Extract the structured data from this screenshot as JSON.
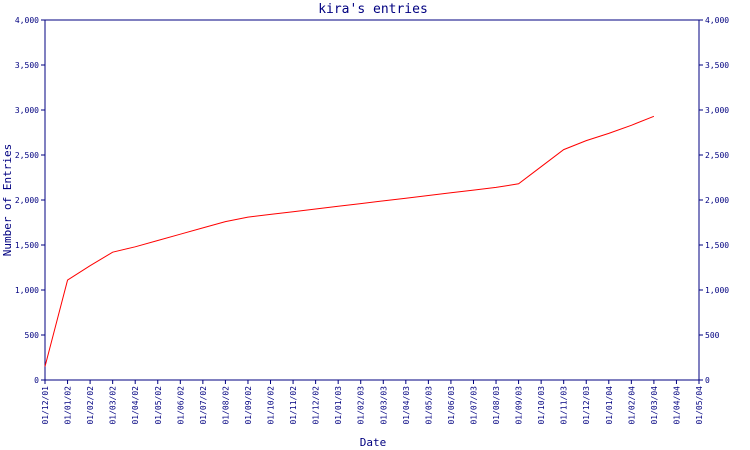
{
  "chart_data": {
    "type": "line",
    "title": "kira's entries",
    "xlabel": "Date",
    "ylabel": "Number of Entries",
    "ylim": [
      0,
      4000
    ],
    "y_ticks": [
      "0",
      "500",
      "1,000",
      "1,500",
      "2,000",
      "2,500",
      "3,000",
      "3,500",
      "4,000"
    ],
    "y_tick_values": [
      0,
      500,
      1000,
      1500,
      2000,
      2500,
      3000,
      3500,
      4000
    ],
    "categories": [
      "01/12/01",
      "01/01/02",
      "01/02/02",
      "01/03/02",
      "01/04/02",
      "01/05/02",
      "01/06/02",
      "01/07/02",
      "01/08/02",
      "01/09/02",
      "01/10/02",
      "01/11/02",
      "01/12/02",
      "01/01/03",
      "01/02/03",
      "01/03/03",
      "01/04/03",
      "01/05/03",
      "01/06/03",
      "01/07/03",
      "01/08/03",
      "01/09/03",
      "01/10/03",
      "01/11/03",
      "01/12/03",
      "01/01/04",
      "01/02/04",
      "01/03/04",
      "01/04/04",
      "01/05/04"
    ],
    "grid": false,
    "legend": "none",
    "series": [
      {
        "values": [
          150,
          1110,
          1270,
          1420,
          1480,
          1550,
          1620,
          1690,
          1760,
          1810,
          1840,
          1870,
          1900,
          1930,
          1960,
          1990,
          2020,
          2050,
          2080,
          2110,
          2140,
          2180,
          2370,
          2560,
          2660,
          2740,
          2830,
          2930,
          null,
          null
        ],
        "color": "#ff0000"
      }
    ],
    "colors": {
      "axis": "#000080",
      "text": "#000080",
      "line": "#ff0000",
      "background": "#ffffff"
    }
  }
}
